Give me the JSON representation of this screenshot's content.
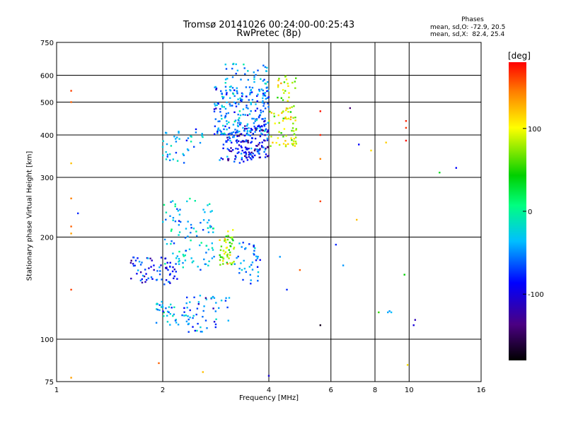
{
  "header": {
    "title_line1": "Tromsø 20141026 00:24:00-00:25:43",
    "title_line2": "RwPretec (8p)"
  },
  "phase_stats": {
    "heading": "Phases",
    "line_o": "mean, sd,O: -72.9, 20.5",
    "line_x": "mean, sd,X:  82.4, 25.4"
  },
  "colorbar": {
    "label": "[deg]",
    "ticks": [
      {
        "value": 100,
        "label": "100"
      },
      {
        "value": 0,
        "label": "0"
      },
      {
        "value": -100,
        "label": "-100"
      }
    ],
    "range": [
      -180,
      180
    ]
  },
  "chart_data": {
    "type": "scatter",
    "title": "Tromsø 20141026 00:24:00-00:25:43",
    "subtitle": "RwPretec (8p)",
    "xlabel": "Frequency [MHz]",
    "ylabel": "Stationary phase Virtual Height [km]",
    "xscale": "log",
    "yscale": "log",
    "xlim": [
      1,
      16
    ],
    "ylim": [
      75,
      750
    ],
    "xticks": [
      {
        "value": 1,
        "label": "1"
      },
      {
        "value": 2,
        "label": "2"
      },
      {
        "value": 4,
        "label": "4"
      },
      {
        "value": 6,
        "label": "6"
      },
      {
        "value": 8,
        "label": "8"
      },
      {
        "value": 10,
        "label": "10"
      },
      {
        "value": 16,
        "label": "16"
      }
    ],
    "yticks": [
      {
        "value": 75,
        "label": "75"
      },
      {
        "value": 100,
        "label": "100"
      },
      {
        "value": 200,
        "label": "200"
      },
      {
        "value": 300,
        "label": "300"
      },
      {
        "value": 400,
        "label": "400"
      },
      {
        "value": 500,
        "label": "500"
      },
      {
        "value": 600,
        "label": "600"
      },
      {
        "value": 750,
        "label": "750"
      }
    ],
    "grid": true,
    "color_scale": "phase [deg], -180 to 180, rainbow",
    "clusters": [
      {
        "f_range": [
          2.9,
          3.6
        ],
        "h_range": [
          330,
          410
        ],
        "phase_mean": -95,
        "n": 90
      },
      {
        "f_range": [
          2.8,
          4.0
        ],
        "h_range": [
          400,
          560
        ],
        "phase_mean": -65,
        "n": 220
      },
      {
        "f_range": [
          3.4,
          4.0
        ],
        "h_range": [
          340,
          430
        ],
        "phase_mean": -100,
        "n": 80
      },
      {
        "f_range": [
          2.0,
          2.6
        ],
        "h_range": [
          330,
          420
        ],
        "phase_mean": -55,
        "n": 40
      },
      {
        "f_range": [
          4.0,
          4.8
        ],
        "h_range": [
          370,
          470
        ],
        "phase_mean": 85,
        "n": 60
      },
      {
        "f_range": [
          4.2,
          4.8
        ],
        "h_range": [
          470,
          600
        ],
        "phase_mean": 80,
        "n": 30
      },
      {
        "f_range": [
          3.0,
          4.0
        ],
        "h_range": [
          560,
          650
        ],
        "phase_mean": -60,
        "n": 35
      },
      {
        "f_range": [
          1.6,
          2.2
        ],
        "h_range": [
          145,
          175
        ],
        "phase_mean": -90,
        "n": 70
      },
      {
        "f_range": [
          2.0,
          2.8
        ],
        "h_range": [
          160,
          260
        ],
        "phase_mean": -45,
        "n": 100
      },
      {
        "f_range": [
          1.9,
          2.4
        ],
        "h_range": [
          110,
          130
        ],
        "phase_mean": -50,
        "n": 40
      },
      {
        "f_range": [
          2.3,
          3.1
        ],
        "h_range": [
          105,
          135
        ],
        "phase_mean": -70,
        "n": 50
      },
      {
        "f_range": [
          2.9,
          3.2
        ],
        "h_range": [
          165,
          210
        ],
        "phase_mean": 78,
        "n": 50
      },
      {
        "f_range": [
          3.2,
          3.8
        ],
        "h_range": [
          145,
          195
        ],
        "phase_mean": -60,
        "n": 40
      }
    ],
    "points": [
      {
        "x": 1.1,
        "y": 540,
        "phase": 160
      },
      {
        "x": 1.1,
        "y": 500,
        "phase": 150
      },
      {
        "x": 1.1,
        "y": 330,
        "phase": 120
      },
      {
        "x": 1.1,
        "y": 260,
        "phase": 140
      },
      {
        "x": 1.1,
        "y": 215,
        "phase": 150
      },
      {
        "x": 1.1,
        "y": 205,
        "phase": 130
      },
      {
        "x": 1.1,
        "y": 140,
        "phase": 160
      },
      {
        "x": 1.1,
        "y": 77,
        "phase": 130
      },
      {
        "x": 1.15,
        "y": 235,
        "phase": -90
      },
      {
        "x": 1.95,
        "y": 85,
        "phase": 150
      },
      {
        "x": 2.6,
        "y": 80,
        "phase": 120
      },
      {
        "x": 4.0,
        "y": 78,
        "phase": -110
      },
      {
        "x": 5.6,
        "y": 470,
        "phase": 175
      },
      {
        "x": 5.6,
        "y": 400,
        "phase": 170
      },
      {
        "x": 5.6,
        "y": 340,
        "phase": 140
      },
      {
        "x": 5.6,
        "y": 255,
        "phase": 160
      },
      {
        "x": 5.6,
        "y": 110,
        "phase": -170
      },
      {
        "x": 6.2,
        "y": 190,
        "phase": -90
      },
      {
        "x": 6.8,
        "y": 480,
        "phase": -140
      },
      {
        "x": 7.2,
        "y": 375,
        "phase": -100
      },
      {
        "x": 7.1,
        "y": 225,
        "phase": 120
      },
      {
        "x": 7.8,
        "y": 360,
        "phase": 110
      },
      {
        "x": 9.8,
        "y": 440,
        "phase": 170
      },
      {
        "x": 9.8,
        "y": 420,
        "phase": 165
      },
      {
        "x": 9.8,
        "y": 385,
        "phase": 175
      },
      {
        "x": 9.7,
        "y": 155,
        "phase": 40
      },
      {
        "x": 9.9,
        "y": 84,
        "phase": 110
      },
      {
        "x": 10.3,
        "y": 110,
        "phase": -110
      },
      {
        "x": 10.4,
        "y": 114,
        "phase": -120
      },
      {
        "x": 12.2,
        "y": 310,
        "phase": 30
      },
      {
        "x": 13.6,
        "y": 320,
        "phase": -100
      },
      {
        "x": 8.7,
        "y": 120,
        "phase": -55
      },
      {
        "x": 8.8,
        "y": 121,
        "phase": -60
      },
      {
        "x": 8.9,
        "y": 120,
        "phase": -50
      },
      {
        "x": 8.2,
        "y": 120,
        "phase": 50
      },
      {
        "x": 8.6,
        "y": 380,
        "phase": 115
      },
      {
        "x": 6.5,
        "y": 165,
        "phase": -60
      },
      {
        "x": 4.9,
        "y": 160,
        "phase": 150
      },
      {
        "x": 4.5,
        "y": 140,
        "phase": -90
      },
      {
        "x": 4.3,
        "y": 175,
        "phase": -60
      }
    ]
  }
}
